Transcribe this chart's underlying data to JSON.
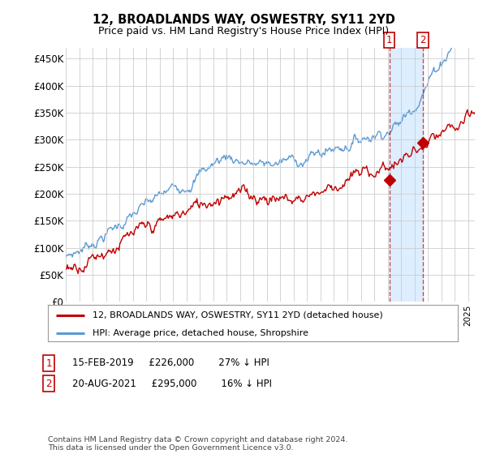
{
  "title": "12, BROADLANDS WAY, OSWESTRY, SY11 2YD",
  "subtitle": "Price paid vs. HM Land Registry's House Price Index (HPI)",
  "ytick_values": [
    0,
    50000,
    100000,
    150000,
    200000,
    250000,
    300000,
    350000,
    400000,
    450000
  ],
  "ylim": [
    0,
    470000
  ],
  "xlim_start": 1995.0,
  "xlim_end": 2025.5,
  "hpi_color": "#5b9bd5",
  "hpi_shade_color": "#ddeeff",
  "price_color": "#c00000",
  "sale1_date": 2019.12,
  "sale1_price": 226000,
  "sale2_date": 2021.63,
  "sale2_price": 295000,
  "legend_line1": "12, BROADLANDS WAY, OSWESTRY, SY11 2YD (detached house)",
  "legend_line2": "HPI: Average price, detached house, Shropshire",
  "annotation1_text": "15-FEB-2019     £226,000        27% ↓ HPI",
  "annotation2_text": "20-AUG-2021     £295,000        16% ↓ HPI",
  "footer": "Contains HM Land Registry data © Crown copyright and database right 2024.\nThis data is licensed under the Open Government Licence v3.0.",
  "background_color": "#ffffff",
  "grid_color": "#cccccc"
}
